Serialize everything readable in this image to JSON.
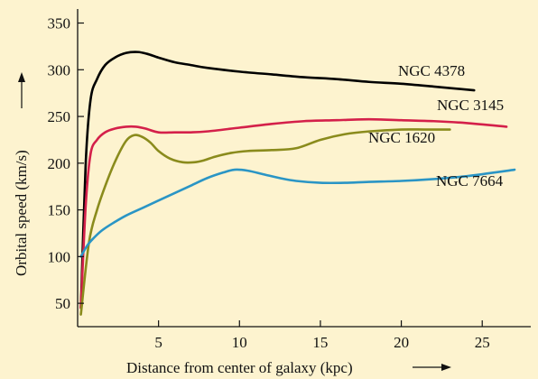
{
  "chart_data": {
    "type": "line",
    "title": "",
    "xlabel": "Distance from center of  galaxy (kpc)",
    "ylabel": "Orbital speed (km/s)",
    "xlim": [
      0,
      28
    ],
    "ylim": [
      25,
      365
    ],
    "xticks": [
      5,
      10,
      15,
      20,
      25
    ],
    "yticks": [
      50,
      100,
      150,
      200,
      250,
      300,
      350
    ],
    "grid": false,
    "legend": "labels placed at right end of each curve",
    "background_color": "#fdf3cf",
    "series": [
      {
        "name": "NGC 4378",
        "color": "#000000",
        "x": [
          0.2,
          0.5,
          0.8,
          1.2,
          1.7,
          2.3,
          3.0,
          3.7,
          4.3,
          5.0,
          6.0,
          7.0,
          8.0,
          10.0,
          12.0,
          14.0,
          16.0,
          18.0,
          20.0,
          22.0,
          24.5
        ],
        "y": [
          45,
          200,
          268,
          290,
          305,
          313,
          318,
          319,
          317,
          313,
          308,
          305,
          302,
          298,
          295,
          292,
          290,
          287,
          285,
          282,
          278
        ]
      },
      {
        "name": "NGC 3145",
        "color": "#d4204a",
        "x": [
          0.2,
          0.5,
          0.8,
          1.2,
          1.7,
          2.3,
          3.0,
          3.6,
          4.2,
          5.0,
          6.0,
          7.0,
          8.0,
          10.0,
          12.0,
          14.0,
          16.0,
          18.0,
          20.0,
          22.0,
          24.0,
          26.5
        ],
        "y": [
          45,
          155,
          210,
          225,
          233,
          237,
          239,
          239,
          237,
          233,
          233,
          233,
          234,
          238,
          242,
          245,
          246,
          247,
          246,
          245,
          243,
          239
        ]
      },
      {
        "name": "NGC 1620",
        "color": "#8a8b1c",
        "x": [
          0.2,
          0.7,
          1.2,
          1.8,
          2.4,
          3.0,
          3.5,
          4.0,
          4.5,
          5.0,
          5.7,
          6.5,
          7.2,
          7.8,
          8.5,
          9.5,
          10.5,
          12.0,
          13.5,
          15.0,
          16.5,
          18.0,
          20.0,
          21.5,
          23.0
        ],
        "y": [
          38,
          115,
          150,
          180,
          205,
          224,
          230,
          228,
          222,
          213,
          205,
          201,
          201,
          203,
          207,
          211,
          213,
          214,
          216,
          225,
          231,
          234,
          236,
          236,
          236
        ]
      },
      {
        "name": "NGC 7664",
        "color": "#2a95c5",
        "x": [
          0.2,
          0.6,
          1.0,
          1.5,
          2.2,
          3.0,
          4.0,
          5.0,
          6.0,
          7.0,
          8.0,
          9.0,
          9.7,
          10.5,
          11.5,
          12.5,
          13.5,
          15.0,
          16.5,
          18.0,
          20.0,
          22.0,
          24.0,
          27.0
        ],
        "y": [
          100,
          112,
          120,
          128,
          136,
          144,
          152,
          160,
          168,
          176,
          184,
          190,
          193,
          192,
          188,
          184,
          181,
          179,
          179,
          180,
          181,
          183,
          186,
          193
        ]
      }
    ]
  }
}
